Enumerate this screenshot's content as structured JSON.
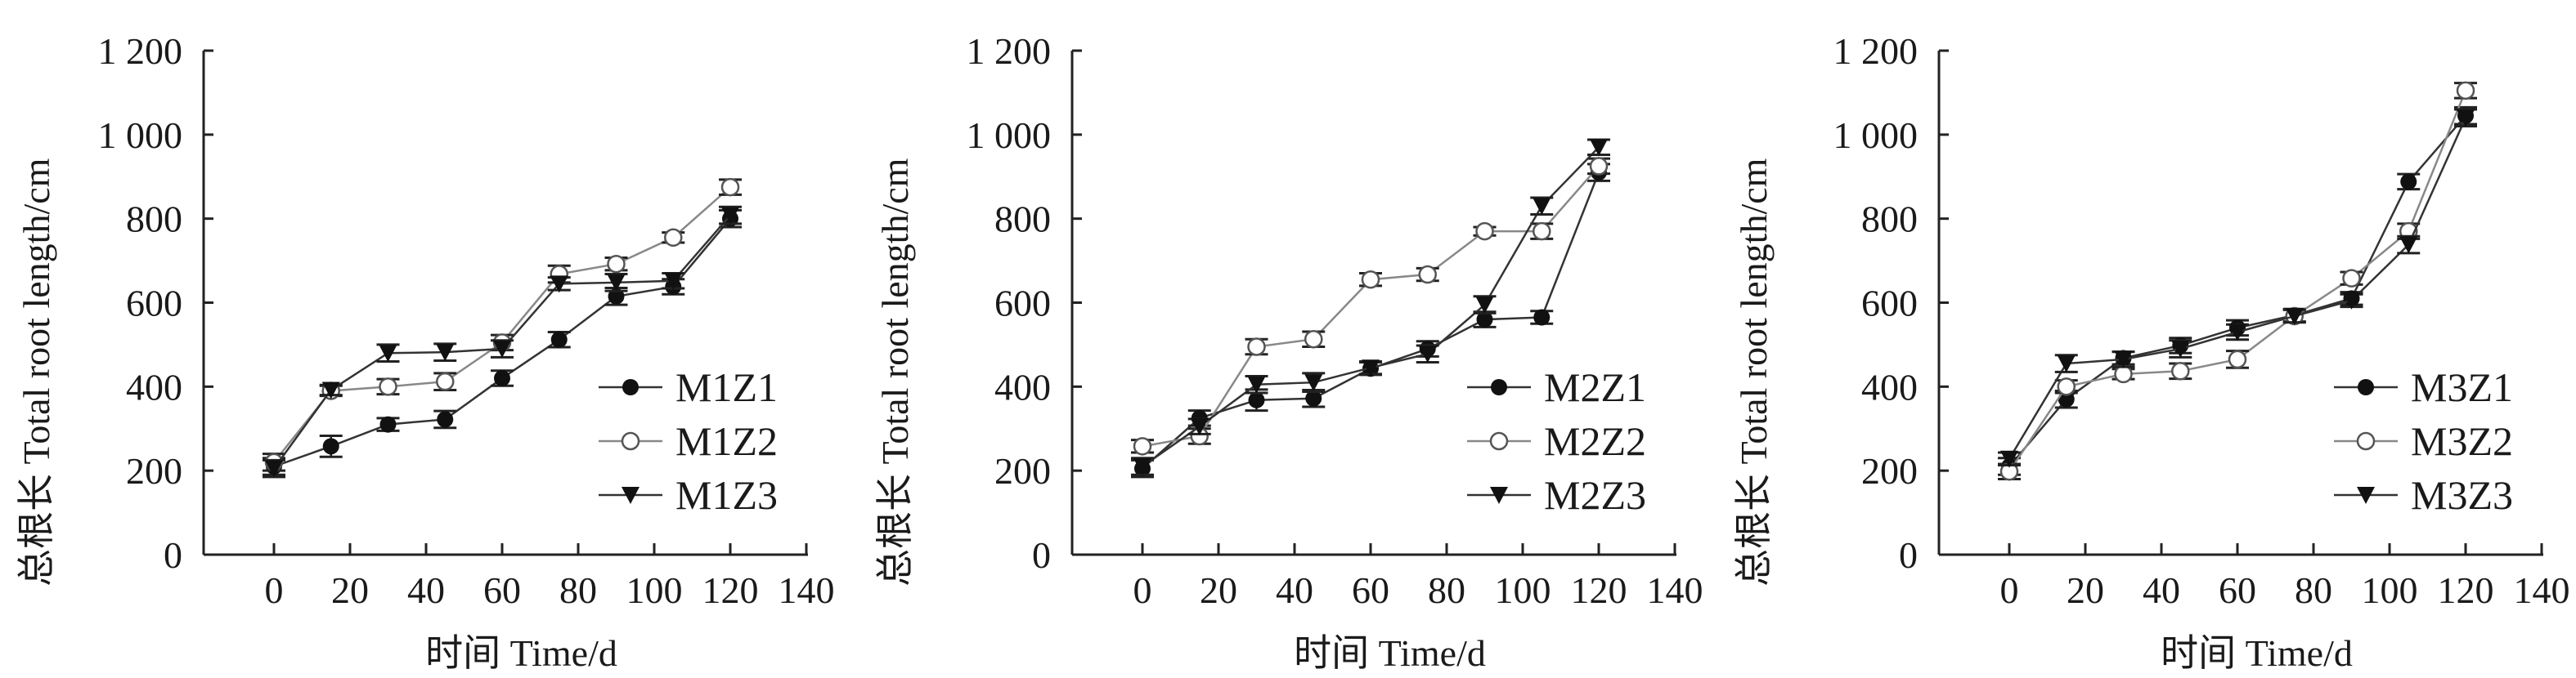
{
  "chart_data": [
    {
      "type": "line",
      "xlabel": "时间 Time/d",
      "ylabel": "总根长 Total root length/cm",
      "xlim": [
        0,
        140
      ],
      "ylim": [
        0,
        1200
      ],
      "xticks": [
        "0",
        "20",
        "40",
        "60",
        "80",
        "100",
        "120",
        "140"
      ],
      "yticks": [
        "0",
        "200",
        "400",
        "600",
        "800",
        "1 000",
        "1 200"
      ],
      "grid": false,
      "legend_position": "right",
      "error_bars": true,
      "x": [
        0,
        15,
        30,
        45,
        60,
        75,
        90,
        105,
        120
      ],
      "series": [
        {
          "name": "M1Z1",
          "marker": "filled-circle",
          "color": "#333333",
          "values": [
            210,
            258,
            310,
            322,
            420,
            512,
            615,
            638,
            800
          ],
          "error": [
            20,
            25,
            15,
            20,
            18,
            18,
            20,
            18,
            20
          ]
        },
        {
          "name": "M1Z2",
          "marker": "open-circle",
          "color": "#888888",
          "values": [
            220,
            390,
            400,
            412,
            505,
            668,
            692,
            755,
            875
          ],
          "error": [
            20,
            12,
            18,
            20,
            18,
            20,
            15,
            12,
            18
          ]
        },
        {
          "name": "M1Z3",
          "marker": "filled-triangle-down",
          "color": "#333333",
          "values": [
            205,
            392,
            480,
            482,
            490,
            645,
            648,
            652,
            808
          ],
          "error": [
            20,
            12,
            20,
            20,
            20,
            15,
            20,
            18,
            20
          ]
        }
      ]
    },
    {
      "type": "line",
      "xlabel": "时间 Time/d",
      "ylabel": "总根长 Total root length/cm",
      "xlim": [
        0,
        140
      ],
      "ylim": [
        0,
        1200
      ],
      "xticks": [
        "0",
        "20",
        "40",
        "60",
        "80",
        "100",
        "120",
        "140"
      ],
      "yticks": [
        "0",
        "200",
        "400",
        "600",
        "800",
        "1 000",
        "1 200"
      ],
      "grid": false,
      "legend_position": "right",
      "error_bars": true,
      "x": [
        0,
        15,
        30,
        45,
        60,
        75,
        90,
        105,
        120
      ],
      "series": [
        {
          "name": "M2Z1",
          "marker": "filled-circle",
          "color": "#333333",
          "values": [
            205,
            325,
            368,
            372,
            443,
            490,
            560,
            565,
            910
          ],
          "error": [
            20,
            18,
            25,
            20,
            15,
            18,
            18,
            15,
            20
          ]
        },
        {
          "name": "M2Z2",
          "marker": "open-circle",
          "color": "#888888",
          "values": [
            258,
            282,
            495,
            513,
            655,
            667,
            770,
            770,
            925
          ],
          "error": [
            15,
            18,
            18,
            18,
            15,
            15,
            10,
            18,
            18
          ]
        },
        {
          "name": "M2Z3",
          "marker": "filled-triangle-down",
          "color": "#333333",
          "values": [
            210,
            305,
            405,
            410,
            445,
            478,
            595,
            830,
            970
          ],
          "error": [
            20,
            18,
            20,
            22,
            15,
            20,
            20,
            20,
            18
          ]
        }
      ]
    },
    {
      "type": "line",
      "xlabel": "时间 Time/d",
      "ylabel": "总根长 Total root length/cm",
      "xlim": [
        0,
        140
      ],
      "ylim": [
        0,
        1200
      ],
      "xticks": [
        "0",
        "20",
        "40",
        "60",
        "80",
        "100",
        "120",
        "140"
      ],
      "yticks": [
        "0",
        "200",
        "400",
        "600",
        "800",
        "1 000",
        "1 200"
      ],
      "grid": false,
      "legend_position": "right",
      "error_bars": true,
      "x": [
        0,
        15,
        30,
        45,
        60,
        75,
        90,
        105,
        120
      ],
      "series": [
        {
          "name": "M3Z1",
          "marker": "filled-circle",
          "color": "#333333",
          "values": [
            210,
            370,
            468,
            498,
            540,
            570,
            610,
            888,
            1045
          ],
          "error": [
            20,
            20,
            15,
            18,
            18,
            15,
            15,
            18,
            20
          ]
        },
        {
          "name": "M3Z2",
          "marker": "open-circle",
          "color": "#888888",
          "values": [
            198,
            400,
            430,
            437,
            465,
            568,
            658,
            770,
            1105
          ],
          "error": [
            18,
            15,
            12,
            18,
            20,
            15,
            15,
            18,
            18
          ]
        },
        {
          "name": "M3Z3",
          "marker": "filled-triangle-down",
          "color": "#333333",
          "values": [
            228,
            455,
            465,
            490,
            530,
            568,
            605,
            738,
            1040
          ],
          "error": [
            15,
            20,
            18,
            20,
            18,
            15,
            15,
            20,
            20
          ]
        }
      ]
    }
  ]
}
